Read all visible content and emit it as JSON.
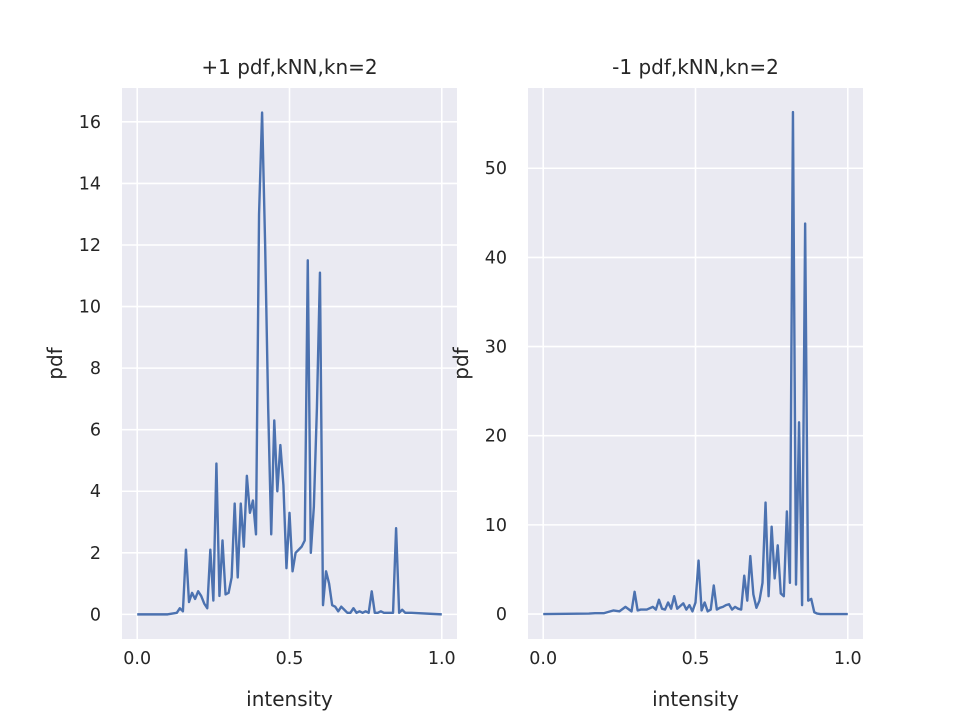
{
  "charts": [
    {
      "type": "line",
      "title": "+1 pdf,kNN,kn=2",
      "xlabel": "intensity",
      "ylabel": "pdf",
      "xlim": [
        -0.05,
        1.05
      ],
      "ylim": [
        -0.8,
        17.1
      ],
      "xticks": [
        {
          "v": 0.0,
          "label": "0.0"
        },
        {
          "v": 0.5,
          "label": "0.5"
        },
        {
          "v": 1.0,
          "label": "1.0"
        }
      ],
      "yticks": [
        {
          "v": 0,
          "label": "0"
        },
        {
          "v": 2,
          "label": "2"
        },
        {
          "v": 4,
          "label": "4"
        },
        {
          "v": 6,
          "label": "6"
        },
        {
          "v": 8,
          "label": "8"
        },
        {
          "v": 10,
          "label": "10"
        },
        {
          "v": 12,
          "label": "12"
        },
        {
          "v": 14,
          "label": "14"
        },
        {
          "v": 16,
          "label": "16"
        }
      ],
      "grid": true,
      "color": "#4c72b0",
      "series": [
        {
          "x": [
            0.0,
            0.1,
            0.13,
            0.14,
            0.15,
            0.16,
            0.17,
            0.18,
            0.19,
            0.2,
            0.21,
            0.22,
            0.23,
            0.24,
            0.25,
            0.26,
            0.27,
            0.28,
            0.29,
            0.3,
            0.31,
            0.32,
            0.33,
            0.34,
            0.35,
            0.36,
            0.37,
            0.38,
            0.39,
            0.4,
            0.41,
            0.42,
            0.43,
            0.44,
            0.45,
            0.46,
            0.47,
            0.48,
            0.49,
            0.5,
            0.51,
            0.52,
            0.53,
            0.54,
            0.55,
            0.56,
            0.57,
            0.58,
            0.59,
            0.6,
            0.61,
            0.62,
            0.63,
            0.64,
            0.65,
            0.66,
            0.67,
            0.68,
            0.69,
            0.7,
            0.71,
            0.72,
            0.73,
            0.74,
            0.75,
            0.76,
            0.77,
            0.78,
            0.79,
            0.8,
            0.81,
            0.82,
            0.83,
            0.84,
            0.85,
            0.86,
            0.87,
            0.88,
            0.9,
            1.0
          ],
          "y": [
            0,
            0,
            0.05,
            0.2,
            0.1,
            2.1,
            0.4,
            0.7,
            0.5,
            0.75,
            0.6,
            0.35,
            0.2,
            2.1,
            0.45,
            4.9,
            0.6,
            2.4,
            0.65,
            0.7,
            1.2,
            3.6,
            1.2,
            3.6,
            2.2,
            4.5,
            3.3,
            3.7,
            2.6,
            13.0,
            16.3,
            12.0,
            6.7,
            2.6,
            6.3,
            4.0,
            5.5,
            4.2,
            1.5,
            3.3,
            1.4,
            2.0,
            2.1,
            2.2,
            2.4,
            11.5,
            2.0,
            3.5,
            6.7,
            11.1,
            0.3,
            1.4,
            1.0,
            0.3,
            0.25,
            0.1,
            0.25,
            0.15,
            0.05,
            0.05,
            0.2,
            0.05,
            0.1,
            0.05,
            0.1,
            0.05,
            0.75,
            0.05,
            0.05,
            0.1,
            0.05,
            0.05,
            0.05,
            0.05,
            2.8,
            0.05,
            0.15,
            0.05,
            0.05,
            0
          ]
        }
      ]
    },
    {
      "type": "line",
      "title": "-1 pdf,kNN,kn=2",
      "xlabel": "intensity",
      "ylabel": "pdf",
      "xlim": [
        -0.05,
        1.05
      ],
      "ylim": [
        -2.8,
        59.0
      ],
      "xticks": [
        {
          "v": 0.0,
          "label": "0.0"
        },
        {
          "v": 0.5,
          "label": "0.5"
        },
        {
          "v": 1.0,
          "label": "1.0"
        }
      ],
      "yticks": [
        {
          "v": 0,
          "label": "0"
        },
        {
          "v": 10,
          "label": "10"
        },
        {
          "v": 20,
          "label": "20"
        },
        {
          "v": 30,
          "label": "30"
        },
        {
          "v": 40,
          "label": "40"
        },
        {
          "v": 50,
          "label": "50"
        }
      ],
      "grid": true,
      "color": "#4c72b0",
      "series": [
        {
          "x": [
            0.0,
            0.15,
            0.17,
            0.2,
            0.23,
            0.25,
            0.27,
            0.29,
            0.3,
            0.31,
            0.32,
            0.34,
            0.36,
            0.37,
            0.38,
            0.39,
            0.4,
            0.41,
            0.42,
            0.43,
            0.44,
            0.45,
            0.46,
            0.47,
            0.48,
            0.49,
            0.5,
            0.51,
            0.52,
            0.53,
            0.54,
            0.55,
            0.56,
            0.57,
            0.58,
            0.59,
            0.6,
            0.61,
            0.62,
            0.63,
            0.64,
            0.65,
            0.66,
            0.67,
            0.68,
            0.69,
            0.7,
            0.71,
            0.72,
            0.73,
            0.74,
            0.75,
            0.76,
            0.77,
            0.78,
            0.79,
            0.8,
            0.81,
            0.82,
            0.83,
            0.84,
            0.85,
            0.86,
            0.87,
            0.88,
            0.89,
            0.9,
            0.91,
            0.92,
            0.93,
            1.0
          ],
          "y": [
            0,
            0.05,
            0.1,
            0.1,
            0.4,
            0.3,
            0.8,
            0.3,
            2.5,
            0.4,
            0.5,
            0.5,
            0.8,
            0.5,
            1.6,
            0.6,
            0.5,
            1.3,
            0.6,
            2.0,
            0.6,
            0.9,
            1.2,
            0.5,
            1.0,
            0.3,
            1.3,
            6.0,
            0.4,
            1.3,
            0.3,
            0.5,
            3.2,
            0.5,
            0.7,
            0.8,
            1.0,
            1.1,
            0.5,
            0.8,
            0.6,
            0.5,
            4.3,
            1.5,
            6.5,
            2.2,
            0.7,
            1.5,
            3.5,
            12.5,
            2.0,
            9.8,
            4.0,
            7.7,
            2.3,
            2.0,
            11.5,
            3.5,
            56.3,
            3.3,
            21.5,
            1.0,
            43.8,
            1.5,
            1.7,
            0.2,
            0.05,
            0,
            0,
            0,
            0
          ]
        }
      ]
    }
  ]
}
